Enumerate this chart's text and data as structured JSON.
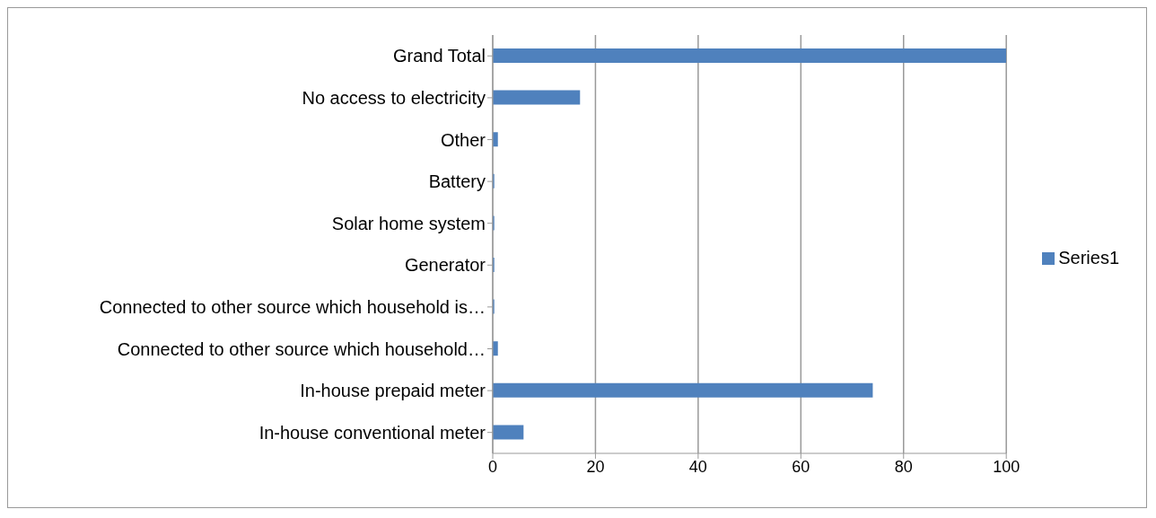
{
  "chart_data": {
    "type": "bar",
    "orientation": "horizontal",
    "categories": [
      "Grand Total",
      "No access to electricity",
      "Other",
      "Battery",
      "Solar home system",
      "Generator",
      "Connected to other source which household is…",
      "Connected to other source which household…",
      "In-house prepaid meter",
      "In-house conventional meter"
    ],
    "series": [
      {
        "name": "Series1",
        "color": "#4f81bd",
        "values": [
          100,
          17,
          1,
          0.3,
          0.3,
          0.3,
          0.3,
          1,
          74,
          6
        ]
      }
    ],
    "xlim": [
      0,
      100
    ],
    "xticks": [
      0,
      20,
      40,
      60,
      80,
      100
    ],
    "grid": "x",
    "legend": "right"
  }
}
